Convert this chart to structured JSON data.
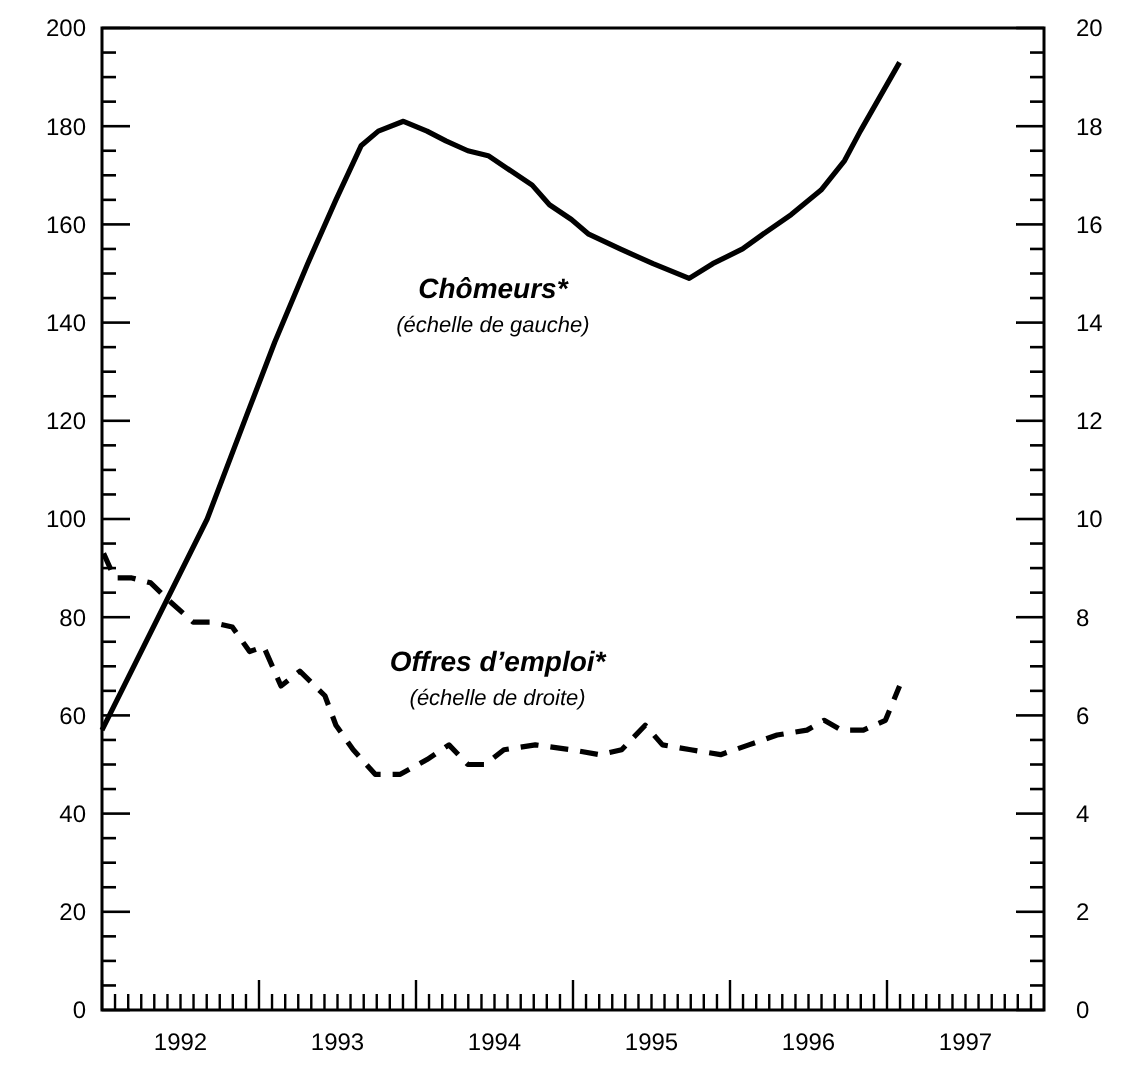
{
  "chart_data": {
    "type": "line",
    "xlim": [
      1992,
      1998
    ],
    "xticks": [
      {
        "value": 1992,
        "label": null
      },
      {
        "value": 1992.083,
        "label": null
      },
      {
        "value": 1992.167,
        "label": null
      },
      {
        "value": 1992.25,
        "label": null
      },
      {
        "value": 1992.333,
        "label": null
      },
      {
        "value": 1992.417,
        "label": null
      },
      {
        "value": 1992.5,
        "label": "1992"
      },
      {
        "value": 1992.583,
        "label": null
      },
      {
        "value": 1992.667,
        "label": null
      },
      {
        "value": 1992.75,
        "label": null
      },
      {
        "value": 1992.833,
        "label": null
      },
      {
        "value": 1992.917,
        "label": null
      },
      {
        "value": 1993,
        "label": null
      },
      {
        "value": 1993.083,
        "label": null
      },
      {
        "value": 1993.167,
        "label": null
      },
      {
        "value": 1993.25,
        "label": null
      },
      {
        "value": 1993.333,
        "label": null
      },
      {
        "value": 1993.417,
        "label": null
      },
      {
        "value": 1993.5,
        "label": "1993"
      },
      {
        "value": 1993.583,
        "label": null
      },
      {
        "value": 1993.667,
        "label": null
      },
      {
        "value": 1993.75,
        "label": null
      },
      {
        "value": 1993.833,
        "label": null
      },
      {
        "value": 1993.917,
        "label": null
      },
      {
        "value": 1994,
        "label": null
      },
      {
        "value": 1994.083,
        "label": null
      },
      {
        "value": 1994.167,
        "label": null
      },
      {
        "value": 1994.25,
        "label": null
      },
      {
        "value": 1994.333,
        "label": null
      },
      {
        "value": 1994.417,
        "label": null
      },
      {
        "value": 1994.5,
        "label": "1994"
      },
      {
        "value": 1994.583,
        "label": null
      },
      {
        "value": 1994.667,
        "label": null
      },
      {
        "value": 1994.75,
        "label": null
      },
      {
        "value": 1994.833,
        "label": null
      },
      {
        "value": 1994.917,
        "label": null
      },
      {
        "value": 1995,
        "label": null
      },
      {
        "value": 1995.083,
        "label": null
      },
      {
        "value": 1995.167,
        "label": null
      },
      {
        "value": 1995.25,
        "label": null
      },
      {
        "value": 1995.333,
        "label": null
      },
      {
        "value": 1995.417,
        "label": null
      },
      {
        "value": 1995.5,
        "label": "1995"
      },
      {
        "value": 1995.583,
        "label": null
      },
      {
        "value": 1995.667,
        "label": null
      },
      {
        "value": 1995.75,
        "label": null
      },
      {
        "value": 1995.833,
        "label": null
      },
      {
        "value": 1995.917,
        "label": null
      },
      {
        "value": 1996,
        "label": null
      },
      {
        "value": 1996.083,
        "label": null
      },
      {
        "value": 1996.167,
        "label": null
      },
      {
        "value": 1996.25,
        "label": null
      },
      {
        "value": 1996.333,
        "label": null
      },
      {
        "value": 1996.417,
        "label": null
      },
      {
        "value": 1996.5,
        "label": "1996"
      },
      {
        "value": 1996.583,
        "label": null
      },
      {
        "value": 1996.667,
        "label": null
      },
      {
        "value": 1996.75,
        "label": null
      },
      {
        "value": 1996.833,
        "label": null
      },
      {
        "value": 1996.917,
        "label": null
      },
      {
        "value": 1997,
        "label": null
      },
      {
        "value": 1997.083,
        "label": null
      },
      {
        "value": 1997.167,
        "label": null
      },
      {
        "value": 1997.25,
        "label": null
      },
      {
        "value": 1997.333,
        "label": null
      },
      {
        "value": 1997.417,
        "label": null
      },
      {
        "value": 1997.5,
        "label": "1997"
      },
      {
        "value": 1997.583,
        "label": null
      },
      {
        "value": 1997.667,
        "label": null
      },
      {
        "value": 1997.75,
        "label": null
      },
      {
        "value": 1997.833,
        "label": null
      },
      {
        "value": 1997.917,
        "label": null
      }
    ],
    "ylim": [
      0,
      200
    ],
    "yticks": [
      0,
      {
        "value": 5,
        "label": null
      },
      {
        "value": 10,
        "label": null
      },
      {
        "value": 15,
        "label": null
      },
      20,
      {
        "value": 25,
        "label": null
      },
      {
        "value": 30,
        "label": null
      },
      {
        "value": 35,
        "label": null
      },
      40,
      {
        "value": 45,
        "label": null
      },
      {
        "value": 50,
        "label": null
      },
      {
        "value": 55,
        "label": null
      },
      60,
      {
        "value": 65,
        "label": null
      },
      {
        "value": 70,
        "label": null
      },
      {
        "value": 75,
        "label": null
      },
      80,
      {
        "value": 85,
        "label": null
      },
      {
        "value": 90,
        "label": null
      },
      {
        "value": 95,
        "label": null
      },
      100,
      {
        "value": 105,
        "label": null
      },
      {
        "value": 110,
        "label": null
      },
      {
        "value": 115,
        "label": null
      },
      120,
      {
        "value": 125,
        "label": null
      },
      {
        "value": 130,
        "label": null
      },
      {
        "value": 135,
        "label": null
      },
      140,
      {
        "value": 145,
        "label": null
      },
      {
        "value": 150,
        "label": null
      },
      {
        "value": 155,
        "label": null
      },
      160,
      {
        "value": 165,
        "label": null
      },
      {
        "value": 170,
        "label": null
      },
      {
        "value": 175,
        "label": null
      },
      180,
      {
        "value": 185,
        "label": null
      },
      {
        "value": 190,
        "label": null
      },
      {
        "value": 195,
        "label": null
      },
      200
    ],
    "y2lim": [
      0,
      20
    ],
    "y2ticks": [
      0,
      {
        "value": 0.5,
        "label": null
      },
      {
        "value": 1,
        "label": null
      },
      {
        "value": 1.5,
        "label": null
      },
      2,
      {
        "value": 2.5,
        "label": null
      },
      {
        "value": 3,
        "label": null
      },
      {
        "value": 3.5,
        "label": null
      },
      4,
      {
        "value": 4.5,
        "label": null
      },
      {
        "value": 5,
        "label": null
      },
      {
        "value": 5.5,
        "label": null
      },
      6,
      {
        "value": 6.5,
        "label": null
      },
      {
        "value": 7,
        "label": null
      },
      {
        "value": 7.5,
        "label": null
      },
      8,
      {
        "value": 8.5,
        "label": null
      },
      {
        "value": 9,
        "label": null
      },
      {
        "value": 9.5,
        "label": null
      },
      10,
      {
        "value": 10.5,
        "label": null
      },
      {
        "value": 11,
        "label": null
      },
      {
        "value": 11.5,
        "label": null
      },
      12,
      {
        "value": 12.5,
        "label": null
      },
      {
        "value": 13,
        "label": null
      },
      {
        "value": 13.5,
        "label": null
      },
      14,
      {
        "value": 14.5,
        "label": null
      },
      {
        "value": 15,
        "label": null
      },
      {
        "value": 15.5,
        "label": null
      },
      16,
      {
        "value": 16.5,
        "label": null
      },
      {
        "value": 17,
        "label": null
      },
      {
        "value": 17.5,
        "label": null
      },
      18,
      {
        "value": 18.5,
        "label": null
      },
      {
        "value": 19,
        "label": null
      },
      {
        "value": 19.5,
        "label": null
      },
      20
    ],
    "series": [
      {
        "name": "Chômeurs*",
        "color": "#000000",
        "line_style": "solid",
        "x": [
          1992.0,
          1992.67,
          1992.92,
          1993.1,
          1993.31,
          1993.49,
          1993.65,
          1993.76,
          1993.92,
          1994.07,
          1994.19,
          1994.33,
          1994.46,
          1994.74,
          1994.85,
          1994.99,
          1995.1,
          1995.3,
          1995.51,
          1995.74,
          1995.89,
          1996.08,
          1996.21,
          1996.39,
          1996.58,
          1996.73,
          1996.83,
          1997.08
        ],
        "values": [
          57,
          100,
          121,
          136,
          152,
          165,
          176,
          179,
          181,
          179,
          177,
          175,
          174,
          168,
          164,
          161,
          158,
          155,
          152,
          149,
          152,
          155,
          158,
          162,
          167,
          173,
          179,
          193
        ]
      },
      {
        "name": "Offres d’emploi*",
        "color": "#000000",
        "line_style": "dashed",
        "axis": "y2",
        "x": [
          1992.01,
          1992.08,
          1992.19,
          1992.31,
          1992.44,
          1992.58,
          1992.69,
          1992.83,
          1992.94,
          1993.03,
          1993.14,
          1993.26,
          1993.42,
          1993.49,
          1993.6,
          1993.74,
          1993.9,
          1994.07,
          1994.21,
          1994.33,
          1994.44,
          1994.56,
          1994.76,
          1994.99,
          1995.17,
          1995.31,
          1995.46,
          1995.57,
          1995.75,
          1995.94,
          1996.12,
          1996.3,
          1996.49,
          1996.6,
          1996.71,
          1996.85,
          1996.99,
          1997.08
        ],
        "values": [
          9.3,
          8.8,
          8.8,
          8.7,
          8.3,
          7.9,
          7.9,
          7.8,
          7.3,
          7.4,
          6.6,
          6.9,
          6.4,
          5.8,
          5.3,
          4.8,
          4.8,
          5.1,
          5.4,
          5.0,
          5.0,
          5.3,
          5.4,
          5.3,
          5.2,
          5.3,
          5.8,
          5.4,
          5.3,
          5.2,
          5.4,
          5.6,
          5.7,
          5.9,
          5.7,
          5.7,
          5.9,
          6.6
        ]
      }
    ],
    "annotations": [
      "(échelle de gauche)",
      "(échelle de droite)"
    ]
  }
}
